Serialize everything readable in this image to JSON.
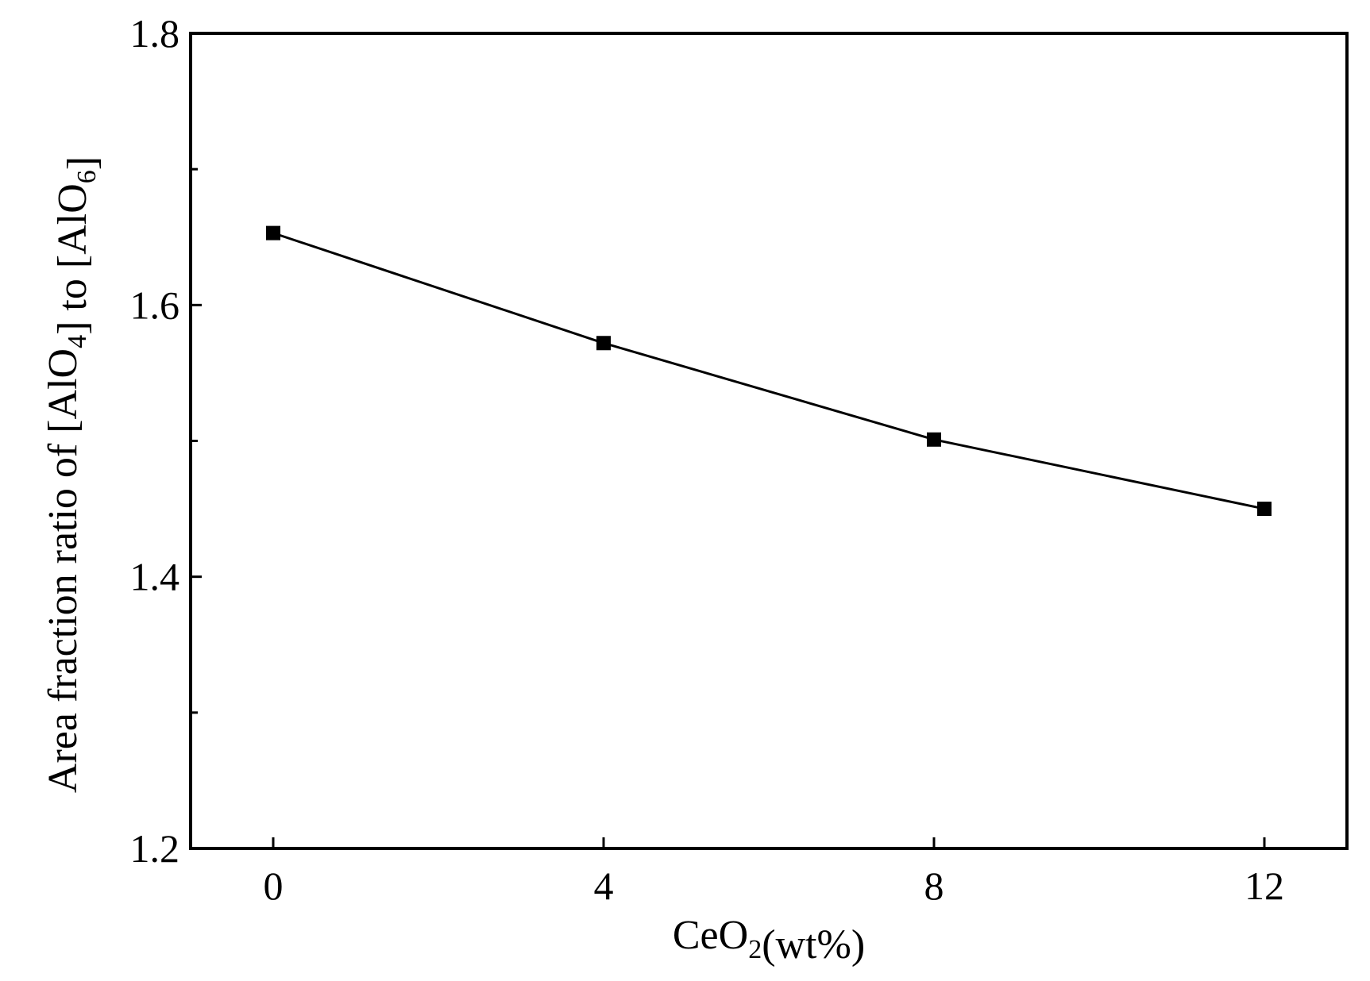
{
  "chart_data": {
    "type": "line",
    "x_label_parts": [
      {
        "text": "CeO",
        "sub": false
      },
      {
        "text": "2",
        "sub": true
      },
      {
        "text": "(wt%)",
        "sub": false
      }
    ],
    "y_label_parts": [
      {
        "text": "Area fraction ratio of [AlO",
        "sub": false
      },
      {
        "text": "4",
        "sub": true
      },
      {
        "text": "] to [AlO",
        "sub": false
      },
      {
        "text": "6",
        "sub": true
      },
      {
        "text": "]",
        "sub": false
      }
    ],
    "x_ticks": [
      "0",
      "4",
      "8",
      "12"
    ],
    "x_tick_values": [
      0,
      4,
      8,
      12
    ],
    "y_ticks": [
      "1.2",
      "1.4",
      "1.6",
      "1.8"
    ],
    "y_tick_values": [
      1.2,
      1.4,
      1.6,
      1.8
    ],
    "y_minor_tick_values": [
      1.3,
      1.5,
      1.7
    ],
    "xlim": [
      -1,
      13
    ],
    "ylim": [
      1.2,
      1.8
    ],
    "grid": false,
    "series": [
      {
        "marker": "square",
        "color": "#000000",
        "x": [
          0,
          4,
          8,
          12
        ],
        "y": [
          1.653,
          1.572,
          1.501,
          1.45
        ]
      }
    ]
  }
}
